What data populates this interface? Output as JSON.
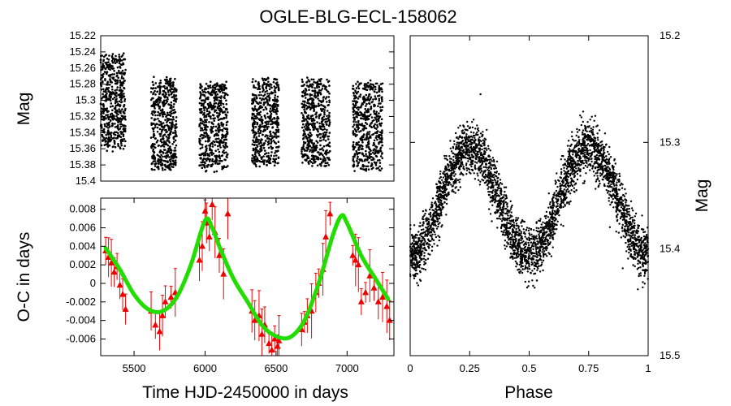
{
  "chart_data": [
    {
      "id": "lightcurve",
      "type": "scatter",
      "title": "OGLE-BLG-ECL-158062",
      "xlabel": "",
      "ylabel": "Mag",
      "xlim": [
        5265,
        7330
      ],
      "ylim": [
        15.4,
        15.22
      ],
      "y_inverted": true,
      "yticks": [
        "15.22",
        "15.24",
        "15.26",
        "15.28",
        "15.3",
        "15.32",
        "15.34",
        "15.36",
        "15.38",
        "15.4"
      ],
      "ytick_values": [
        15.22,
        15.24,
        15.26,
        15.28,
        15.3,
        15.32,
        15.34,
        15.36,
        15.38,
        15.4
      ],
      "seasons": [
        {
          "start": 5265,
          "end": 5440,
          "mag_min": 15.24,
          "mag_max": 15.365
        },
        {
          "start": 5620,
          "end": 5800,
          "mag_min": 15.27,
          "mag_max": 15.39
        },
        {
          "start": 5960,
          "end": 6160,
          "mag_min": 15.275,
          "mag_max": 15.39
        },
        {
          "start": 6330,
          "end": 6520,
          "mag_min": 15.27,
          "mag_max": 15.385
        },
        {
          "start": 6680,
          "end": 6880,
          "mag_min": 15.27,
          "mag_max": 15.385
        },
        {
          "start": 7040,
          "end": 7250,
          "mag_min": 15.275,
          "mag_max": 15.39
        }
      ],
      "color": "#000000"
    },
    {
      "id": "oc",
      "type": "scatter",
      "xlabel": "Time HJD-2450000 in days",
      "ylabel": "O-C in days",
      "xlim": [
        5265,
        7330
      ],
      "ylim": [
        -0.0078,
        0.0092
      ],
      "xticks": [
        "5500",
        "6000",
        "6500",
        "7000"
      ],
      "xtick_values": [
        5500,
        6000,
        6500,
        7000
      ],
      "yticks": [
        "0.008",
        "0.006",
        "0.004",
        "0.002",
        "0",
        "-0.002",
        "-0.004",
        "-0.006"
      ],
      "ytick_values": [
        0.008,
        0.006,
        0.004,
        0.002,
        0,
        -0.002,
        -0.004,
        -0.006
      ],
      "fit": {
        "x": [
          5300,
          5400,
          5500,
          5600,
          5700,
          5800,
          5900,
          6000,
          6050,
          6100,
          6200,
          6300,
          6400,
          6500,
          6600,
          6700,
          6800,
          6900,
          6960,
          7000,
          7100,
          7200,
          7290
        ],
        "y": [
          0.0038,
          0.0015,
          -0.0012,
          -0.0028,
          -0.003,
          -0.0015,
          0.002,
          0.0068,
          0.006,
          0.004,
          0.0005,
          -0.002,
          -0.0045,
          -0.0057,
          -0.0058,
          -0.004,
          0.0,
          0.0052,
          0.0073,
          0.0065,
          0.003,
          0.0005,
          -0.0017
        ],
        "color": "#22dd00"
      },
      "points": {
        "x": [
          5300,
          5320,
          5340,
          5360,
          5380,
          5400,
          5420,
          5440,
          5620,
          5650,
          5680,
          5700,
          5720,
          5760,
          5790,
          5960,
          5980,
          6000,
          6010,
          6030,
          6050,
          6070,
          6100,
          6130,
          6160,
          6330,
          6350,
          6380,
          6400,
          6420,
          6450,
          6470,
          6490,
          6510,
          6520,
          6680,
          6700,
          6720,
          6750,
          6780,
          6800,
          6830,
          6850,
          6880,
          7040,
          7060,
          7080,
          7100,
          7130,
          7160,
          7190,
          7220,
          7250,
          7280,
          7300
        ],
        "y": [
          0.0035,
          0.0028,
          0.0022,
          0.0012,
          0.0018,
          -0.0002,
          -0.0012,
          -0.0028,
          -0.003,
          -0.0045,
          -0.0052,
          -0.0035,
          -0.002,
          -0.0015,
          -0.001,
          0.0025,
          0.004,
          0.0078,
          0.0065,
          0.005,
          0.0085,
          0.0055,
          0.003,
          0.001,
          0.0075,
          -0.003,
          -0.004,
          -0.0035,
          -0.0055,
          -0.0045,
          -0.0065,
          -0.0072,
          -0.006,
          -0.0068,
          -0.0062,
          -0.005,
          -0.0042,
          -0.0035,
          -0.003,
          -0.001,
          0.0,
          0.0015,
          0.005,
          0.0075,
          0.003,
          0.0025,
          0.002,
          -0.002,
          -0.001,
          0.0008,
          -0.0005,
          -0.002,
          -0.0015,
          -0.0025,
          -0.004
        ],
        "color": "#ee0000"
      }
    },
    {
      "id": "phase",
      "type": "scatter",
      "xlabel": "Phase",
      "ylabel": "Mag",
      "xlim": [
        0,
        1
      ],
      "ylim": [
        15.5,
        15.2
      ],
      "y_inverted": true,
      "xticks": [
        "0",
        "0.25",
        "0.5",
        "0.75",
        "1"
      ],
      "xtick_values": [
        0,
        0.25,
        0.5,
        0.75,
        1
      ],
      "yticks": [
        "15.2",
        "15.3",
        "15.4",
        "15.5"
      ],
      "ytick_values": [
        15.2,
        15.3,
        15.4,
        15.5
      ],
      "model": {
        "mean_mag": 15.355,
        "amplitude": 0.05,
        "scatter": 0.022,
        "n_points": 3600
      },
      "color": "#000000"
    }
  ]
}
